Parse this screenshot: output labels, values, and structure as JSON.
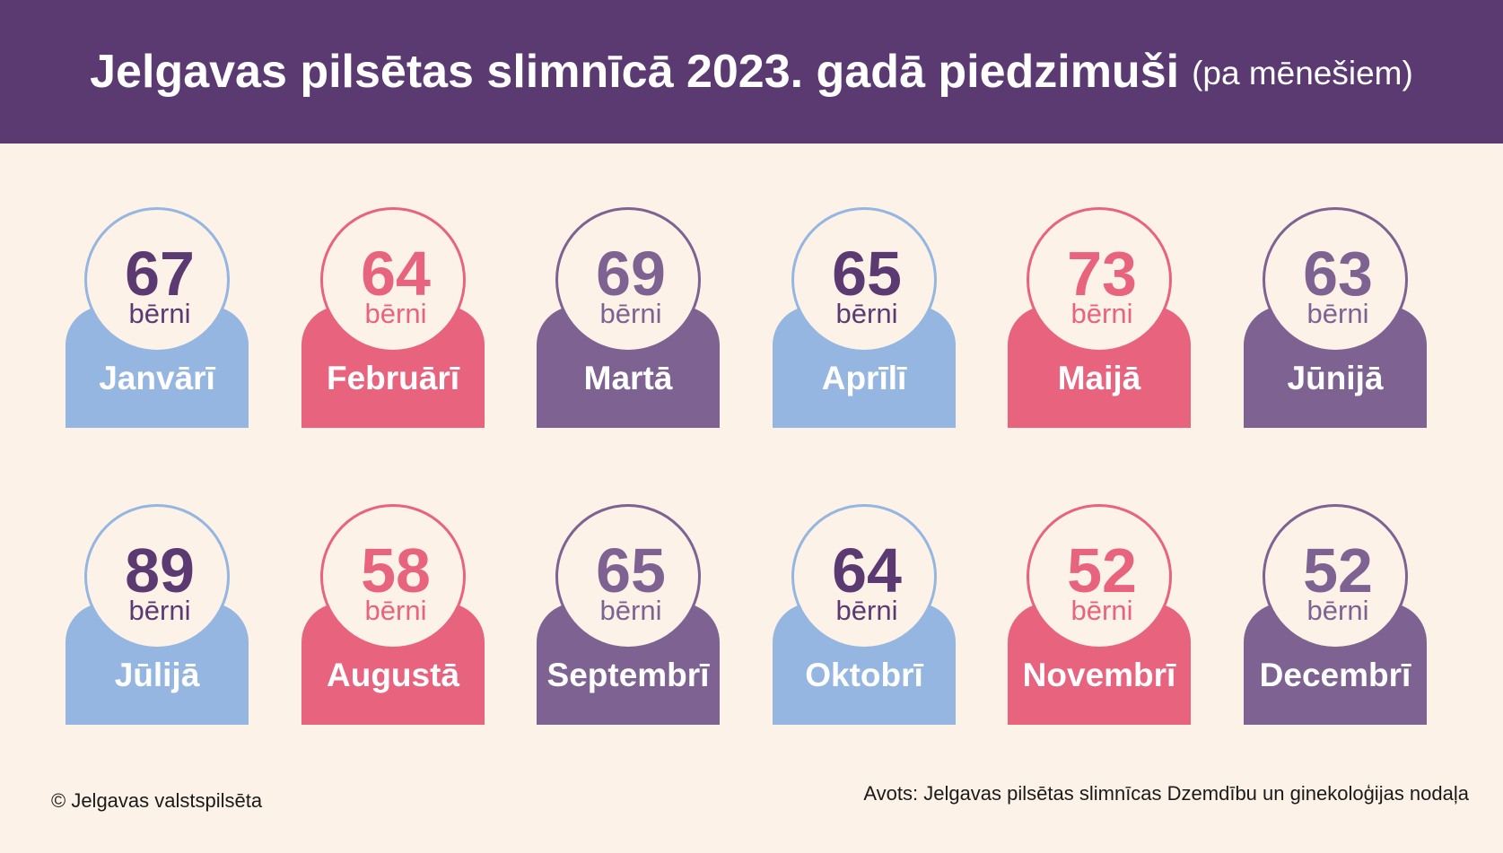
{
  "header": {
    "title": "Jelgavas pilsētas slimnīcā 2023. gadā piedzimuši",
    "subtitle": "(pa mēnešiem)"
  },
  "chart_data": {
    "type": "table",
    "title": "Jelgavas pilsētas slimnīcā 2023. gadā piedzimuši",
    "subtitle": "(pa mēnešiem)",
    "unit": "bērni",
    "categories": [
      "Janvārī",
      "Februārī",
      "Martā",
      "Aprīlī",
      "Maijā",
      "Jūnijā",
      "Jūlijā",
      "Augustā",
      "Septembrī",
      "Oktobrī",
      "Novembrī",
      "Decembrī"
    ],
    "values": [
      67,
      64,
      69,
      65,
      73,
      63,
      89,
      58,
      65,
      64,
      52,
      52
    ]
  },
  "colors": {
    "header_bg": "#5b3a72",
    "background": "#fdf2e8",
    "palette": [
      {
        "tab": "#94b6e0",
        "ring": "#94b6e0",
        "value": "#5b3a72"
      },
      {
        "tab": "#e8637d",
        "ring": "#e8637d",
        "value": "#e8637d"
      },
      {
        "tab": "#7d6292",
        "ring": "#7d6292",
        "value": "#7d6292"
      }
    ]
  },
  "footer": {
    "copyright": "© Jelgavas valstspilsēta",
    "source": "Avots: Jelgavas pilsētas slimnīcas Dzemdību un ginekoloģijas nodaļa"
  }
}
